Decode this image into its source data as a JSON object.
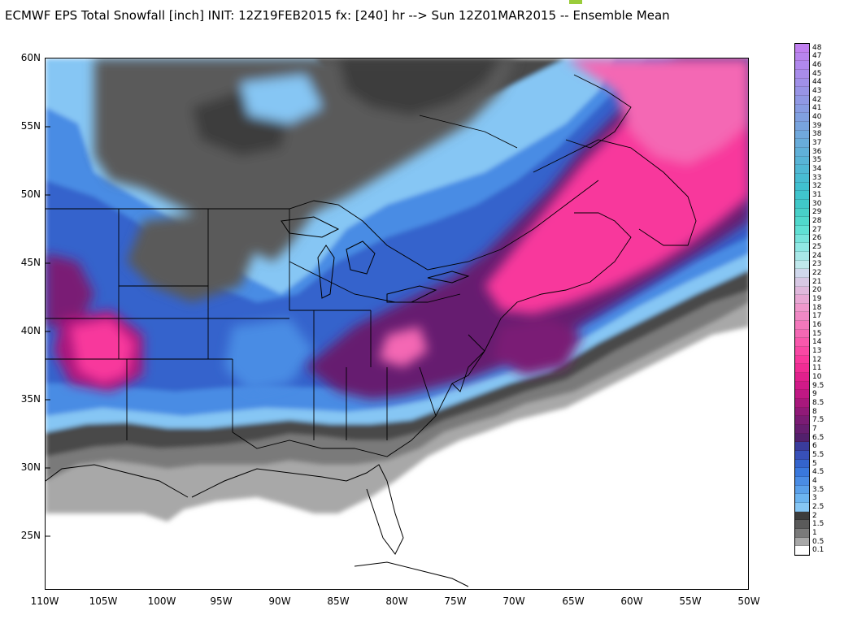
{
  "title": "ECMWF EPS Total Snowfall [inch] INIT: 12Z19FEB2015 fx: [240] hr --> Sun 12Z01MAR2015 -- Ensemble Mean",
  "lat_labels": [
    "60N",
    "55N",
    "50N",
    "45N",
    "40N",
    "35N",
    "30N",
    "25N"
  ],
  "lon_labels": [
    "110W",
    "105W",
    "100W",
    "95W",
    "90W",
    "85W",
    "80W",
    "75W",
    "70W",
    "65W",
    "60W",
    "55W",
    "50W"
  ],
  "colorbar": {
    "levels": [
      "48",
      "47",
      "46",
      "45",
      "44",
      "43",
      "42",
      "41",
      "40",
      "39",
      "38",
      "37",
      "36",
      "35",
      "34",
      "33",
      "32",
      "31",
      "30",
      "29",
      "28",
      "27",
      "26",
      "25",
      "24",
      "23",
      "22",
      "21",
      "20",
      "19",
      "18",
      "17",
      "16",
      "15",
      "14",
      "13",
      "12",
      "11",
      "10",
      "9.5",
      "9",
      "8.5",
      "8",
      "7.5",
      "7",
      "6.5",
      "6",
      "5.5",
      "5",
      "4.5",
      "4",
      "3.5",
      "3",
      "2.5",
      "2",
      "1.5",
      "1",
      "0.5",
      "0.1"
    ],
    "colors": [
      "#c080f0",
      "#b884ee",
      "#b088ec",
      "#a88cea",
      "#a090e8",
      "#9894e6",
      "#9098e4",
      "#889ce2",
      "#80a0e0",
      "#78a4de",
      "#70a8dc",
      "#68acda",
      "#60b0d8",
      "#58b4d6",
      "#50b8d4",
      "#48bcd2",
      "#40c0d0",
      "#40c4cc",
      "#40c8c8",
      "#48d0c8",
      "#50d8cc",
      "#60e0d4",
      "#78e4dc",
      "#90e8e4",
      "#a8e8e8",
      "#c0e8ec",
      "#d0d8ec",
      "#d8c8e4",
      "#e0b8dc",
      "#e8a8d4",
      "#f098cc",
      "#f088c4",
      "#f478bc",
      "#f468b4",
      "#f858ac",
      "#f848a4",
      "#f8389c",
      "#f02c94",
      "#e0208c",
      "#d01a88",
      "#c01884",
      "#a8187c",
      "#901a78",
      "#7a1c74",
      "#661e70",
      "#52206c",
      "#3a3c9c",
      "#3850b8",
      "#3464cc",
      "#3a78dc",
      "#4a8ce4",
      "#5aa0ea",
      "#6cb4f0",
      "#86c6f4",
      "#3c3c3c",
      "#5a5a5a",
      "#7a7a7a",
      "#a8a8a8",
      "#ffffff"
    ]
  }
}
